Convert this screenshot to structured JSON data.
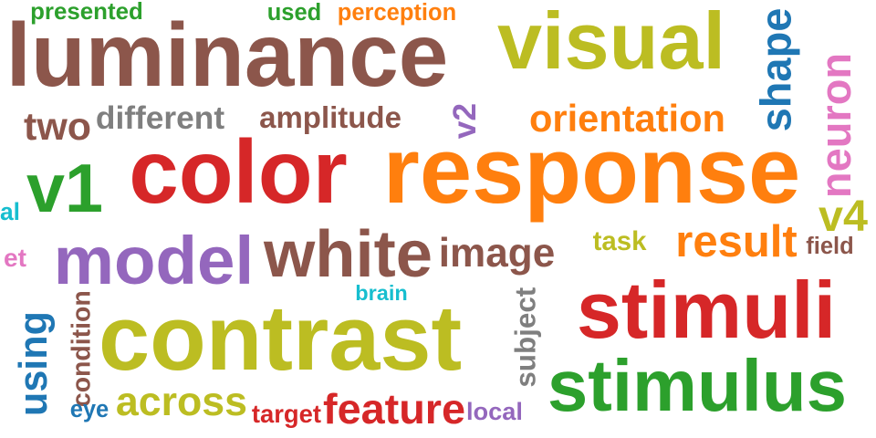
{
  "palette": {
    "brown": "#8c564b",
    "olive": "#bcbd22",
    "red": "#d62728",
    "orange": "#ff7f0e",
    "green": "#2ca02c",
    "blue": "#1f77b4",
    "purple": "#9467bd",
    "gray": "#7f7f7f",
    "pink": "#e377c2",
    "cyan": "#17becf"
  },
  "words": [
    {
      "text": "presented",
      "color": "green"
    },
    {
      "text": "used",
      "color": "green"
    },
    {
      "text": "perception",
      "color": "orange"
    },
    {
      "text": "luminance",
      "color": "brown"
    },
    {
      "text": "visual",
      "color": "olive"
    },
    {
      "text": "shape",
      "color": "blue",
      "rotated": true
    },
    {
      "text": "neuron",
      "color": "pink",
      "rotated": true
    },
    {
      "text": "two",
      "color": "brown"
    },
    {
      "text": "different",
      "color": "gray"
    },
    {
      "text": "amplitude",
      "color": "brown"
    },
    {
      "text": "v2",
      "color": "purple",
      "rotated": true
    },
    {
      "text": "orientation",
      "color": "orange"
    },
    {
      "text": "color",
      "color": "red"
    },
    {
      "text": "response",
      "color": "orange"
    },
    {
      "text": "v1",
      "color": "green"
    },
    {
      "text": "v4",
      "color": "olive"
    },
    {
      "text": "al",
      "color": "cyan"
    },
    {
      "text": "model",
      "color": "purple"
    },
    {
      "text": "white",
      "color": "brown"
    },
    {
      "text": "image",
      "color": "brown"
    },
    {
      "text": "task",
      "color": "olive"
    },
    {
      "text": "result",
      "color": "orange"
    },
    {
      "text": "field",
      "color": "brown"
    },
    {
      "text": "et",
      "color": "pink"
    },
    {
      "text": "brain",
      "color": "cyan"
    },
    {
      "text": "stimuli",
      "color": "red"
    },
    {
      "text": "using",
      "color": "blue",
      "rotated": true
    },
    {
      "text": "condition",
      "color": "brown",
      "rotated": true
    },
    {
      "text": "contrast",
      "color": "olive"
    },
    {
      "text": "subject",
      "color": "gray",
      "rotated": true
    },
    {
      "text": "stimulus",
      "color": "green"
    },
    {
      "text": "eye",
      "color": "blue"
    },
    {
      "text": "across",
      "color": "olive"
    },
    {
      "text": "target",
      "color": "red"
    },
    {
      "text": "feature",
      "color": "red"
    },
    {
      "text": "local",
      "color": "purple"
    }
  ]
}
